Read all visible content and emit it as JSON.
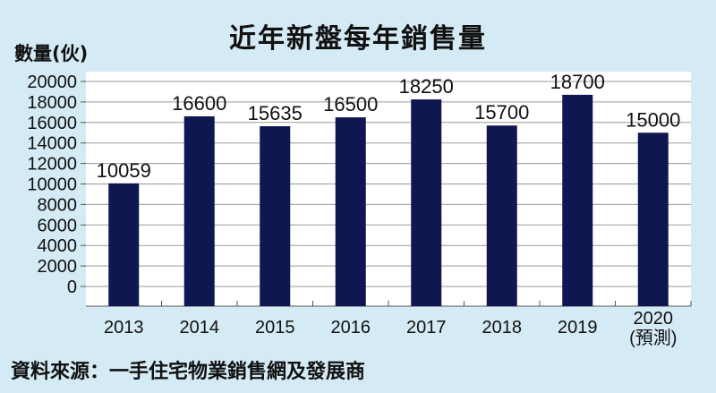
{
  "chart_data": {
    "type": "bar",
    "title": "近年新盤每年銷售量",
    "ylabel": "數量(伙)",
    "xlabel": "",
    "categories": [
      "2013",
      "2014",
      "2015",
      "2016",
      "2017",
      "2018",
      "2019",
      "2020\n(預測)"
    ],
    "values": [
      10059,
      16600,
      15635,
      16500,
      18250,
      15700,
      18700,
      15000
    ],
    "yticks": [
      0,
      2000,
      4000,
      6000,
      8000,
      10000,
      12000,
      14000,
      16000,
      18000,
      20000
    ],
    "ylim": [
      0,
      20000
    ],
    "grid": true,
    "bar_color": "#0f1750",
    "background_color": "#d4eaf4",
    "plot_background": "#ffffff"
  },
  "source": "資料來源：一手住宅物業銷售網及發展商"
}
